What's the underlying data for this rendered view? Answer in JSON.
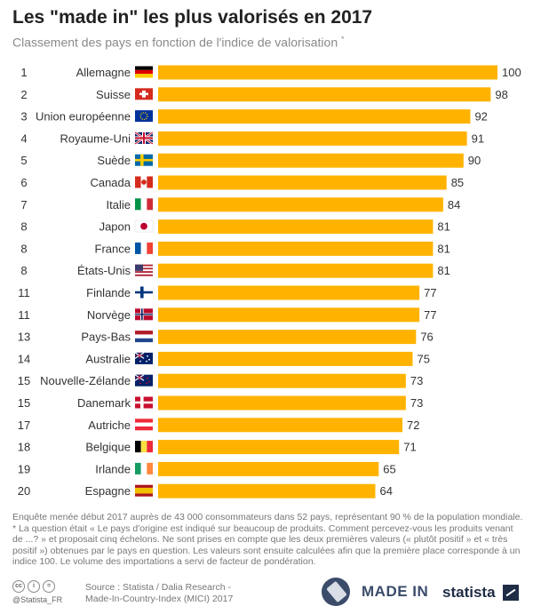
{
  "header": {
    "title": "Les \"made in\" les plus valorisés en 2017",
    "subtitle": "Classement des pays en fonction de l'indice de valorisation",
    "subtitle_mark": "*"
  },
  "chart_data": {
    "type": "bar",
    "orientation": "horizontal",
    "title": "Les \"made in\" les plus valorisés en 2017",
    "subtitle": "Classement des pays en fonction de l'indice de valorisation *",
    "xlim": [
      0,
      100
    ],
    "grid": false,
    "bar_color": "#ffb300",
    "rows": [
      {
        "rank": "1",
        "country": "Allemagne",
        "value": 100,
        "flag": "de-flag-icon"
      },
      {
        "rank": "2",
        "country": "Suisse",
        "value": 98,
        "flag": "ch-flag-icon"
      },
      {
        "rank": "3",
        "country": "Union européenne",
        "value": 92,
        "flag": "eu-flag-icon"
      },
      {
        "rank": "4",
        "country": "Royaume-Uni",
        "value": 91,
        "flag": "uk-flag-icon"
      },
      {
        "rank": "5",
        "country": "Suède",
        "value": 90,
        "flag": "se-flag-icon"
      },
      {
        "rank": "6",
        "country": "Canada",
        "value": 85,
        "flag": "ca-flag-icon"
      },
      {
        "rank": "7",
        "country": "Italie",
        "value": 84,
        "flag": "it-flag-icon"
      },
      {
        "rank": "8",
        "country": "Japon",
        "value": 81,
        "flag": "jp-flag-icon"
      },
      {
        "rank": "8",
        "country": "France",
        "value": 81,
        "flag": "fr-flag-icon"
      },
      {
        "rank": "8",
        "country": "États-Unis",
        "value": 81,
        "flag": "us-flag-icon"
      },
      {
        "rank": "11",
        "country": "Finlande",
        "value": 77,
        "flag": "fi-flag-icon"
      },
      {
        "rank": "11",
        "country": "Norvège",
        "value": 77,
        "flag": "no-flag-icon"
      },
      {
        "rank": "13",
        "country": "Pays-Bas",
        "value": 76,
        "flag": "nl-flag-icon"
      },
      {
        "rank": "14",
        "country": "Australie",
        "value": 75,
        "flag": "au-flag-icon"
      },
      {
        "rank": "15",
        "country": "Nouvelle-Zélande",
        "value": 73,
        "flag": "nz-flag-icon"
      },
      {
        "rank": "15",
        "country": "Danemark",
        "value": 73,
        "flag": "dk-flag-icon"
      },
      {
        "rank": "17",
        "country": "Autriche",
        "value": 72,
        "flag": "at-flag-icon"
      },
      {
        "rank": "18",
        "country": "Belgique",
        "value": 71,
        "flag": "be-flag-icon"
      },
      {
        "rank": "19",
        "country": "Irlande",
        "value": 65,
        "flag": "ie-flag-icon"
      },
      {
        "rank": "20",
        "country": "Espagne",
        "value": 64,
        "flag": "es-flag-icon"
      }
    ]
  },
  "notes": {
    "survey": "Enquête menée début 2017 auprès de 43 000 consommateurs dans 52 pays, représentant 90 % de la population mondiale.",
    "method": "* La question était « Le pays d'origine est indiqué sur beaucoup de produits. Comment percevez-vous les produits venant de ...? » et proposait cinq échelons. Ne sont prises en compte que les deux premières valeurs (« plutôt positif » et « très positif ») obtenues par le pays en question. Les valeurs sont ensuite calculées afin que la première place corresponde à un indice 100. Le volume des importations a servi de facteur de pondération."
  },
  "footer": {
    "cc_icons": [
      "cc",
      "i",
      "="
    ],
    "handle": "@Statista_FR",
    "source_line1": "Source : Statista / Dalia Research -",
    "source_line2": "Made-In-Country-Index (MICI) 2017",
    "made_in": "MADE IN",
    "brand": "statista"
  }
}
